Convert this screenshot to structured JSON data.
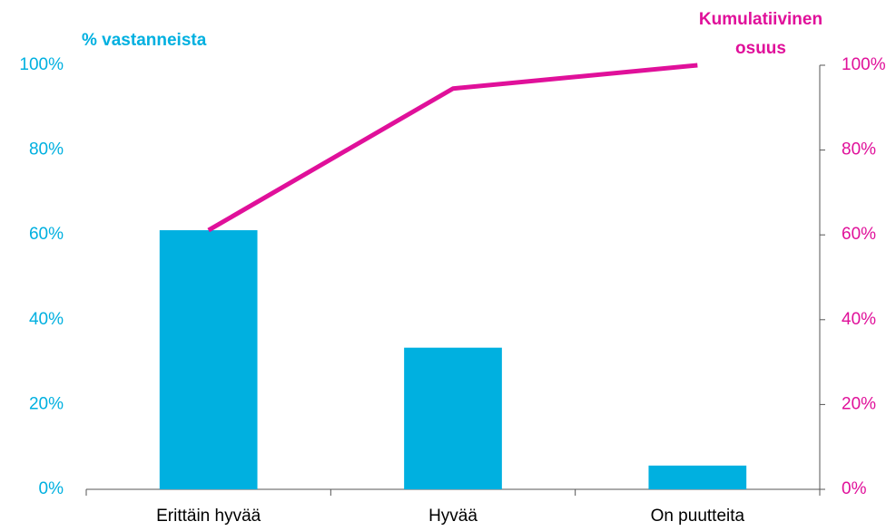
{
  "chart_data": {
    "type": "pareto",
    "ylabel": "% vastanneista",
    "y2label": [
      "Kumulatiivinen",
      "osuus"
    ],
    "categories": [
      "Erittäin hyvää",
      "Hyvää",
      "On puutteita"
    ],
    "series": [
      {
        "type": "bar",
        "color": "#00b0e0",
        "values": [
          61.1,
          33.4,
          5.6
        ]
      },
      {
        "type": "line",
        "color": "#e0109a",
        "axis": "y2",
        "values": [
          61.1,
          94.5,
          100
        ]
      }
    ],
    "ylim": [
      0,
      100
    ],
    "yticks": [
      {
        "value": 0,
        "label": "0%"
      },
      {
        "value": 20,
        "label": "20%"
      },
      {
        "value": 40,
        "label": "40%"
      },
      {
        "value": 60,
        "label": "60%"
      },
      {
        "value": 80,
        "label": "80%"
      },
      {
        "value": 100,
        "label": "100%"
      }
    ],
    "y2lim": [
      0,
      100
    ],
    "y2ticks": [
      {
        "value": 0,
        "label": "0%"
      },
      {
        "value": 20,
        "label": "20%"
      },
      {
        "value": 40,
        "label": "40%"
      },
      {
        "value": 60,
        "label": "60%"
      },
      {
        "value": 80,
        "label": "80%"
      },
      {
        "value": 100,
        "label": "100%"
      }
    ],
    "y_color": "#00b0e0",
    "y2_color": "#e0109a",
    "grid": false
  }
}
